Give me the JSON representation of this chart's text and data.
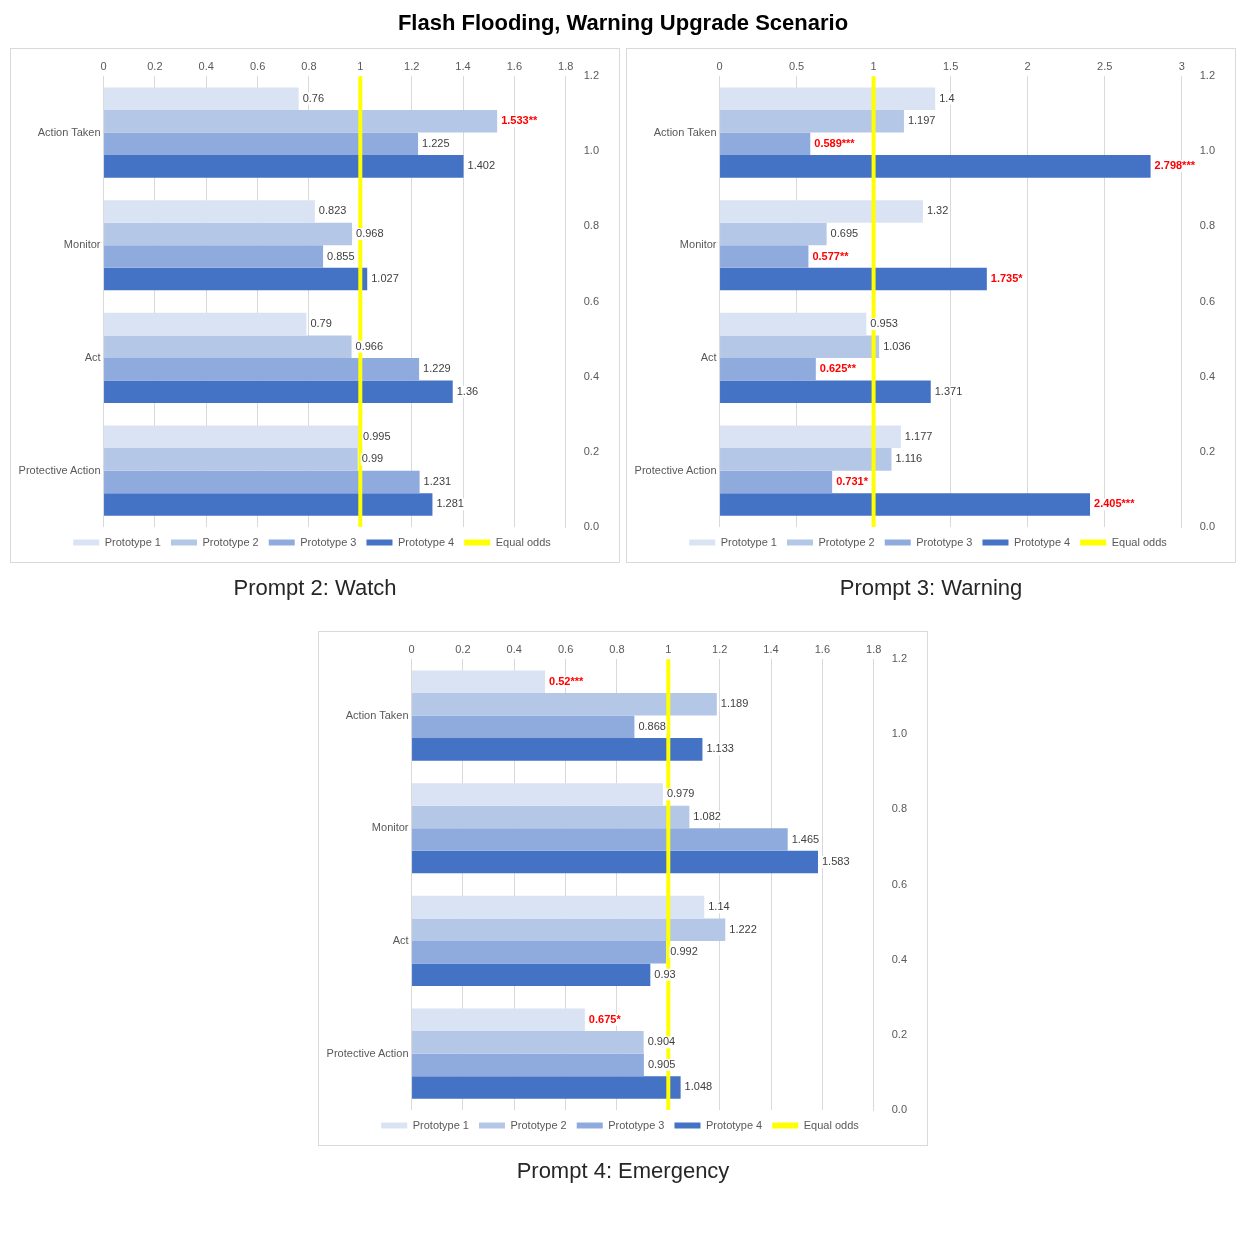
{
  "chart_data": [
    {
      "type": "bar",
      "orientation": "horizontal",
      "title": "Prompt 2: Watch",
      "annotations": [
        "Flash Flooding, Warning Upgrade Scenario"
      ],
      "categories": [
        "Action Taken",
        "Monitor",
        "Act",
        "Protective Action"
      ],
      "xlim": [
        0,
        1.8
      ],
      "xticks": [
        0,
        0.2,
        0.4,
        0.6,
        0.8,
        1,
        1.2,
        1.4,
        1.6,
        1.8
      ],
      "y2lim": [
        0,
        1.2
      ],
      "y2ticks": [
        {
          "value": 0,
          "label": "0.0"
        },
        {
          "value": 0.2,
          "label": "0.2"
        },
        {
          "value": 0.4,
          "label": "0.4"
        },
        {
          "value": 0.6,
          "label": "0.6"
        },
        {
          "value": 0.8,
          "label": "0.8"
        },
        {
          "value": 1,
          "label": "1.0"
        },
        {
          "value": 1.2,
          "label": "1.2"
        }
      ],
      "grid": "x",
      "legend": "bottom",
      "series": [
        {
          "name": "Prototype 1",
          "color": "#dae3f3",
          "values": [
            0.76,
            0.823,
            0.79,
            0.995
          ],
          "value_labels": [
            "0.76",
            "0.823",
            "0.79",
            "0.995"
          ]
        },
        {
          "name": "Prototype 2",
          "color": "#b4c7e7",
          "values": [
            1.533,
            0.968,
            0.966,
            0.99
          ],
          "value_labels": [
            "1.533**",
            "0.968",
            "0.966",
            "0.99"
          ]
        },
        {
          "name": "Prototype 3",
          "color": "#8faadc",
          "values": [
            1.225,
            0.855,
            1.229,
            1.231
          ],
          "value_labels": [
            "1.225",
            "0.855",
            "1.229",
            "1.231"
          ]
        },
        {
          "name": "Prototype 4",
          "color": "#4472c4",
          "values": [
            1.402,
            1.027,
            1.36,
            1.281
          ],
          "value_labels": [
            "1.402",
            "1.027",
            "1.36",
            "1.281"
          ]
        }
      ],
      "ref_lines": [
        {
          "axis": "x",
          "value": 1,
          "label": "Equal odds",
          "color": "#ffff00"
        }
      ]
    },
    {
      "type": "bar",
      "orientation": "horizontal",
      "title": "Prompt 3: Warning",
      "categories": [
        "Action Taken",
        "Monitor",
        "Act",
        "Protective Action"
      ],
      "xlim": [
        0,
        3
      ],
      "xticks": [
        0,
        0.5,
        1,
        1.5,
        2,
        2.5,
        3
      ],
      "y2lim": [
        0,
        1.2
      ],
      "y2ticks": [
        {
          "value": 0,
          "label": "0.0"
        },
        {
          "value": 0.2,
          "label": "0.2"
        },
        {
          "value": 0.4,
          "label": "0.4"
        },
        {
          "value": 0.6,
          "label": "0.6"
        },
        {
          "value": 0.8,
          "label": "0.8"
        },
        {
          "value": 1,
          "label": "1.0"
        },
        {
          "value": 1.2,
          "label": "1.2"
        }
      ],
      "grid": "x",
      "legend": "bottom",
      "series": [
        {
          "name": "Prototype 1",
          "color": "#dae3f3",
          "values": [
            1.4,
            1.32,
            0.953,
            1.177
          ],
          "value_labels": [
            "1.4",
            "1.32",
            "0.953",
            "1.177"
          ]
        },
        {
          "name": "Prototype 2",
          "color": "#b4c7e7",
          "values": [
            1.197,
            0.695,
            1.036,
            1.116
          ],
          "value_labels": [
            "1.197",
            "0.695",
            "1.036",
            "1.116"
          ]
        },
        {
          "name": "Prototype 3",
          "color": "#8faadc",
          "values": [
            0.589,
            0.577,
            0.625,
            0.731
          ],
          "value_labels": [
            "0.589***",
            "0.577**",
            "0.625**",
            "0.731*"
          ]
        },
        {
          "name": "Prototype 4",
          "color": "#4472c4",
          "values": [
            2.798,
            1.735,
            1.371,
            2.405
          ],
          "value_labels": [
            "2.798***",
            "1.735*",
            "1.371",
            "2.405***"
          ]
        }
      ],
      "ref_lines": [
        {
          "axis": "x",
          "value": 1,
          "label": "Equal odds",
          "color": "#ffff00"
        }
      ]
    },
    {
      "type": "bar",
      "orientation": "horizontal",
      "title": "Prompt 4: Emergency",
      "categories": [
        "Action Taken",
        "Monitor",
        "Act",
        "Protective Action"
      ],
      "xlim": [
        0,
        1.8
      ],
      "xticks": [
        0,
        0.2,
        0.4,
        0.6,
        0.8,
        1,
        1.2,
        1.4,
        1.6,
        1.8
      ],
      "y2lim": [
        0,
        1.2
      ],
      "y2ticks": [
        {
          "value": 0,
          "label": "0.0"
        },
        {
          "value": 0.2,
          "label": "0.2"
        },
        {
          "value": 0.4,
          "label": "0.4"
        },
        {
          "value": 0.6,
          "label": "0.6"
        },
        {
          "value": 0.8,
          "label": "0.8"
        },
        {
          "value": 1,
          "label": "1.0"
        },
        {
          "value": 1.2,
          "label": "1.2"
        }
      ],
      "grid": "x",
      "legend": "bottom",
      "series": [
        {
          "name": "Prototype 1",
          "color": "#dae3f3",
          "values": [
            0.52,
            0.979,
            1.14,
            0.675
          ],
          "value_labels": [
            "0.52***",
            "0.979",
            "1.14",
            "0.675*"
          ]
        },
        {
          "name": "Prototype 2",
          "color": "#b4c7e7",
          "values": [
            1.189,
            1.082,
            1.222,
            0.904
          ],
          "value_labels": [
            "1.189",
            "1.082",
            "1.222",
            "0.904"
          ]
        },
        {
          "name": "Prototype 3",
          "color": "#8faadc",
          "values": [
            0.868,
            1.465,
            0.992,
            0.905
          ],
          "value_labels": [
            "0.868",
            "1.465",
            "0.992",
            "0.905"
          ]
        },
        {
          "name": "Prototype 4",
          "color": "#4472c4",
          "values": [
            1.133,
            1.583,
            0.93,
            1.048
          ],
          "value_labels": [
            "1.133",
            "1.583",
            "0.93",
            "1.048"
          ]
        }
      ],
      "ref_lines": [
        {
          "axis": "x",
          "value": 1,
          "label": "Equal odds",
          "color": "#ffff00"
        }
      ]
    }
  ]
}
